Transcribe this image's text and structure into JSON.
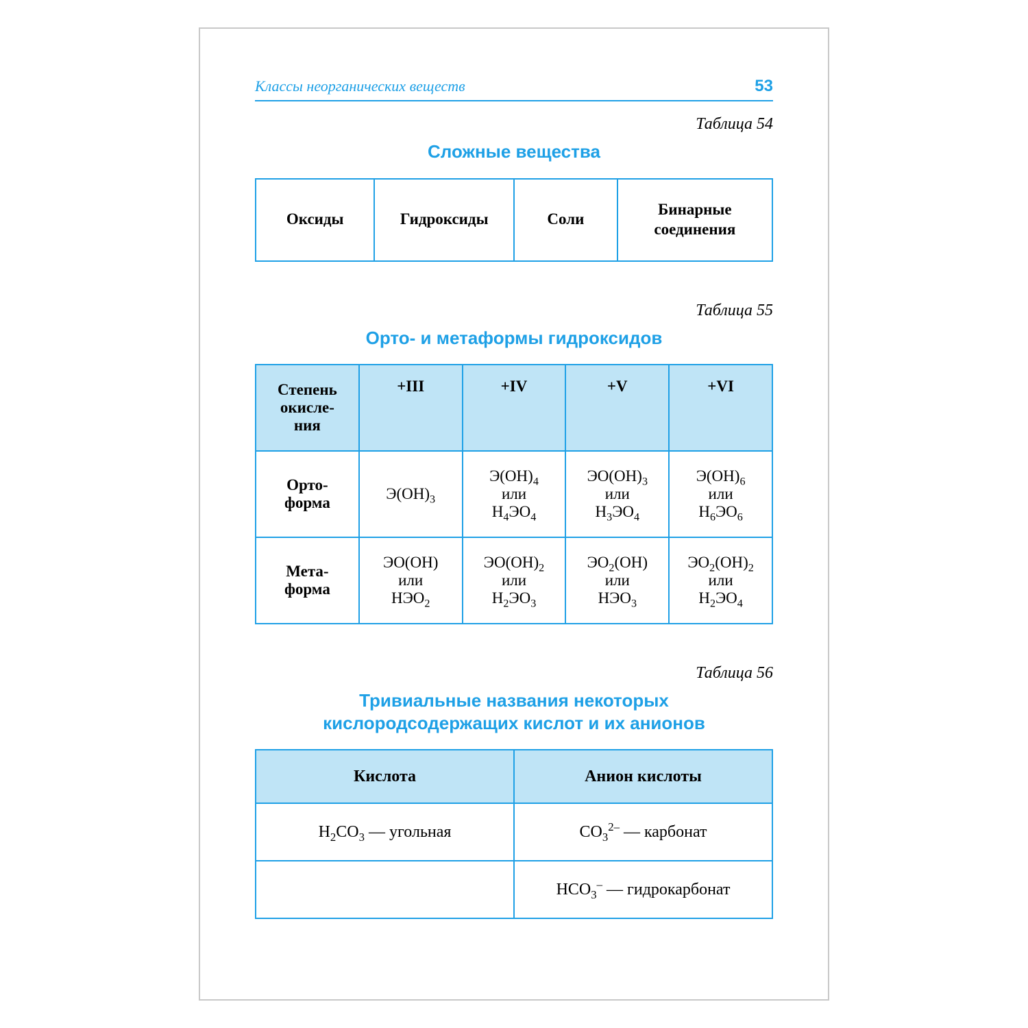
{
  "header": {
    "title": "Классы неорганических веществ",
    "page": "53"
  },
  "colors": {
    "accent": "#1ea0e6",
    "header_bg": "#bfe4f6",
    "border": "#1ea0e6",
    "page_border": "#c8c8c8",
    "text": "#000000",
    "background": "#ffffff"
  },
  "typography": {
    "body_font": "Georgia, 'Times New Roman', serif",
    "title_font": "Arial, Helvetica, sans-serif",
    "body_size_pt": 17,
    "title_size_pt": 20
  },
  "table54": {
    "label": "Таблица  54",
    "title": "Сложные вещества",
    "type": "table",
    "columns": [
      "Оксиды",
      "Гидроксиды",
      "Соли",
      "Бинарные соединения"
    ],
    "col_widths_pct": [
      23,
      27,
      20,
      30
    ]
  },
  "table55": {
    "label": "Таблица  55",
    "title": "Орто- и метаформы гидроксидов",
    "type": "table",
    "col_widths_pct": [
      20,
      20,
      20,
      20,
      20
    ],
    "header": {
      "first": "Степень окисле-\nния",
      "cols": [
        "+III",
        "+IV",
        "+V",
        "+VI"
      ]
    },
    "connector": "или",
    "rows": [
      {
        "label": "Орто-\nформа",
        "cells": [
          {
            "top": "Э(OH)<sub>3</sub>",
            "bottom": ""
          },
          {
            "top": "Э(OH)<sub>4</sub>",
            "bottom": "H<sub>4</sub>ЭO<sub>4</sub>"
          },
          {
            "top": "ЭO(OH)<sub>3</sub>",
            "bottom": "H<sub>3</sub>ЭO<sub>4</sub>"
          },
          {
            "top": "Э(OH)<sub>6</sub>",
            "bottom": "H<sub>6</sub>ЭO<sub>6</sub>"
          }
        ]
      },
      {
        "label": "Мета-\nформа",
        "cells": [
          {
            "top": "ЭO(OH)",
            "bottom": "HЭO<sub>2</sub>"
          },
          {
            "top": "ЭO(OH)<sub>2</sub>",
            "bottom": "H<sub>2</sub>ЭO<sub>3</sub>"
          },
          {
            "top": "ЭO<sub>2</sub>(OH)",
            "bottom": "HЭO<sub>3</sub>"
          },
          {
            "top": "ЭO<sub>2</sub>(OH)<sub>2</sub>",
            "bottom": "H<sub>2</sub>ЭO<sub>4</sub>"
          }
        ]
      }
    ]
  },
  "table56": {
    "label": "Таблица  56",
    "title": "Тривиальные названия некоторых кислородсодержащих кислот и их анионов",
    "type": "table",
    "col_widths_pct": [
      50,
      50
    ],
    "columns": [
      "Кислота",
      "Анион кислоты"
    ],
    "rows": [
      {
        "acid": "H<sub>2</sub>CO<sub>3</sub> — угольная",
        "anion": "CO<sub>3</sub><sup>2–</sup> — карбонат"
      },
      {
        "acid": "",
        "anion": "HCO<sub>3</sub><sup>–</sup> — гидрокарбонат"
      }
    ]
  }
}
